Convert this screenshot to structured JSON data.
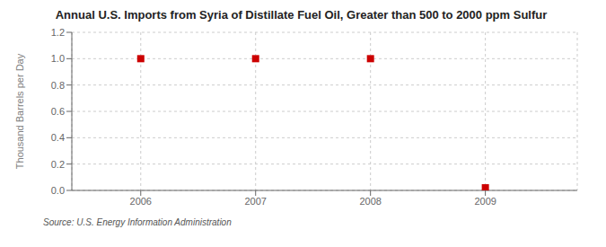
{
  "chart_data": {
    "type": "scatter",
    "title": "Annual U.S. Imports from Syria of Distillate Fuel Oil, Greater than 500 to 2000 ppm Sulfur",
    "ylabel": "Thousand Barrels per Day",
    "source": "Source: U.S. Energy Information Administration",
    "x": [
      2006,
      2007,
      2008,
      2009
    ],
    "values": [
      1.0,
      1.0,
      1.0,
      0.02
    ],
    "xlim": [
      2005.4,
      2009.8
    ],
    "xticks": [
      2006,
      2007,
      2008,
      2009
    ],
    "ylim": [
      0.0,
      1.2
    ],
    "yticks": [
      {
        "value": 0.0,
        "label": "0.0"
      },
      0.2,
      0.4,
      0.6,
      0.8,
      {
        "value": 1.0,
        "label": "1.0"
      },
      1.2
    ],
    "color": "#CC0000",
    "marker": "square",
    "grid": true
  }
}
